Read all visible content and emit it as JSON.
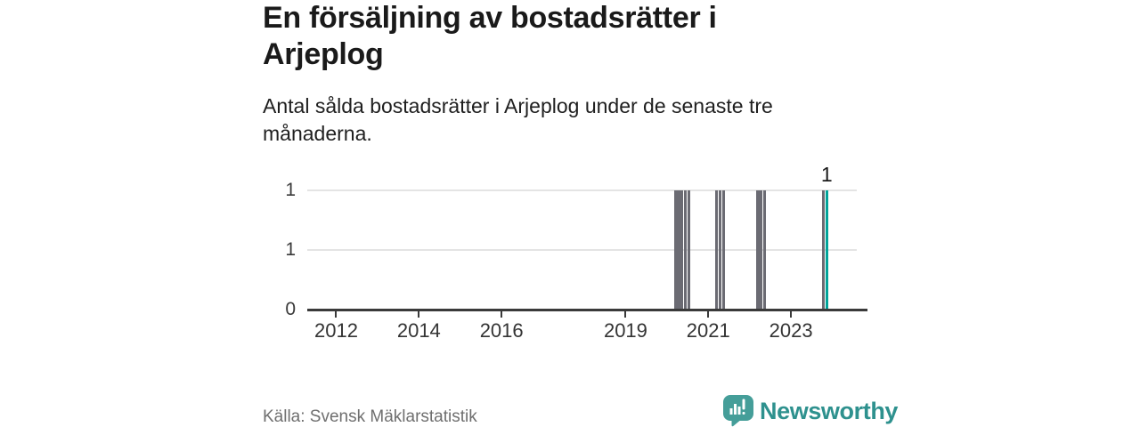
{
  "header": {
    "title": [
      "En försäljning av bostadsrätter i",
      "Arjeplog"
    ],
    "subtitle": [
      "Antal sålda bostadsrätter i Arjeplog under de senaste tre",
      "månaderna."
    ]
  },
  "footer": {
    "source": "Källa: Svensk Mäklarstatistik",
    "brand": "Newsworthy",
    "brand_color": "#2e918e",
    "logo_icon": "speech-bubble-bar-chart",
    "logo_icon_color": "#459e99"
  },
  "chart_data": {
    "type": "bar",
    "title": "En försäljning av bostadsrätter i Arjeplog",
    "subtitle": "Antal sålda bostadsrätter i Arjeplog under de senaste tre månaderna.",
    "xlabel": "",
    "ylabel": "",
    "x_domain": [
      2011.3,
      2024.85
    ],
    "x_ticks": [
      2012,
      2014,
      2016,
      2019,
      2021,
      2023
    ],
    "ylim": [
      0,
      1
    ],
    "y_ticks": [
      {
        "value": 0,
        "label": "0"
      },
      {
        "value": 0.5,
        "label": "1"
      },
      {
        "value": 1,
        "label": "1"
      }
    ],
    "grid": true,
    "legend": "none",
    "bars": [
      {
        "x": 2020.167,
        "value": 1,
        "highlight": false
      },
      {
        "x": 2020.25,
        "value": 1,
        "highlight": false
      },
      {
        "x": 2020.333,
        "value": 1,
        "highlight": false
      },
      {
        "x": 2020.417,
        "value": 1,
        "highlight": false
      },
      {
        "x": 2020.5,
        "value": 1,
        "highlight": false
      },
      {
        "x": 2021.167,
        "value": 1,
        "highlight": false
      },
      {
        "x": 2021.25,
        "value": 1,
        "highlight": false
      },
      {
        "x": 2021.333,
        "value": 1,
        "highlight": false
      },
      {
        "x": 2022.167,
        "value": 1,
        "highlight": false
      },
      {
        "x": 2022.25,
        "value": 1,
        "highlight": false
      },
      {
        "x": 2022.333,
        "value": 1,
        "highlight": false
      },
      {
        "x": 2023.75,
        "value": 1,
        "highlight": false
      },
      {
        "x": 2023.833,
        "value": 1,
        "highlight": true
      }
    ],
    "annotation": {
      "text": "1",
      "x": 2023.833
    },
    "colors": {
      "bar": "#6b6b73",
      "bar_highlight": "#00a49a",
      "grid": "#e4e4e4",
      "axis": "#3a3a3a"
    }
  }
}
